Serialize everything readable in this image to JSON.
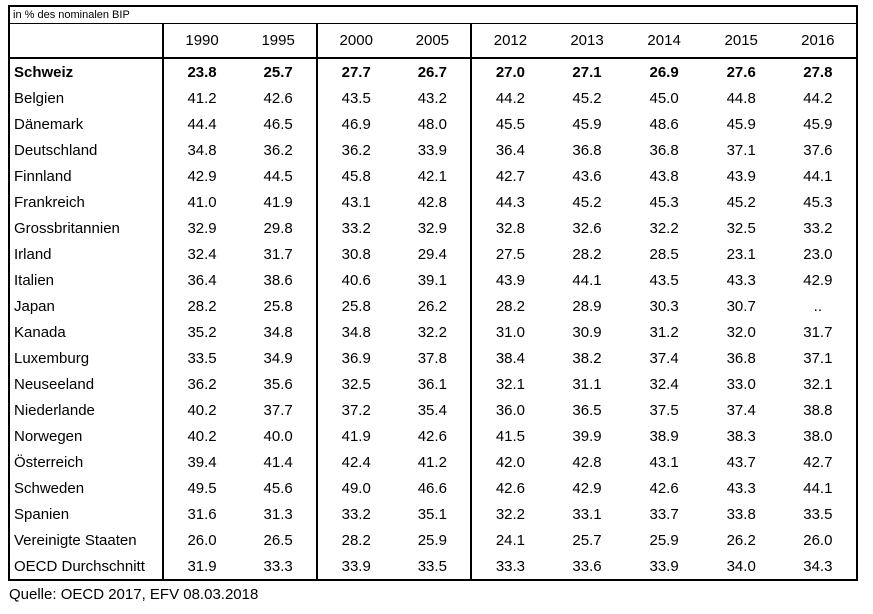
{
  "unit_note": "in % des nominalen BIP",
  "source_note": "Quelle: OECD 2017, EFV 08.03.2018",
  "colors": {
    "text": "#000000",
    "border": "#000000",
    "background": "#ffffff"
  },
  "chart_data": {
    "type": "table",
    "title": "",
    "unit": "in % des nominalen BIP",
    "columns": [
      "1990",
      "1995",
      "2000",
      "2005",
      "2012",
      "2013",
      "2014",
      "2015",
      "2016"
    ],
    "group_separator_after_year_indices": [
      1,
      3
    ],
    "rows": [
      {
        "label": "Schweiz",
        "bold": true,
        "values": [
          "23.8",
          "25.7",
          "27.7",
          "26.7",
          "27.0",
          "27.1",
          "26.9",
          "27.6",
          "27.8"
        ]
      },
      {
        "label": "Belgien",
        "bold": false,
        "values": [
          "41.2",
          "42.6",
          "43.5",
          "43.2",
          "44.2",
          "45.2",
          "45.0",
          "44.8",
          "44.2"
        ]
      },
      {
        "label": "Dänemark",
        "bold": false,
        "values": [
          "44.4",
          "46.5",
          "46.9",
          "48.0",
          "45.5",
          "45.9",
          "48.6",
          "45.9",
          "45.9"
        ]
      },
      {
        "label": "Deutschland",
        "bold": false,
        "values": [
          "34.8",
          "36.2",
          "36.2",
          "33.9",
          "36.4",
          "36.8",
          "36.8",
          "37.1",
          "37.6"
        ]
      },
      {
        "label": "Finnland",
        "bold": false,
        "values": [
          "42.9",
          "44.5",
          "45.8",
          "42.1",
          "42.7",
          "43.6",
          "43.8",
          "43.9",
          "44.1"
        ]
      },
      {
        "label": "Frankreich",
        "bold": false,
        "values": [
          "41.0",
          "41.9",
          "43.1",
          "42.8",
          "44.3",
          "45.2",
          "45.3",
          "45.2",
          "45.3"
        ]
      },
      {
        "label": "Grossbritannien",
        "bold": false,
        "values": [
          "32.9",
          "29.8",
          "33.2",
          "32.9",
          "32.8",
          "32.6",
          "32.2",
          "32.5",
          "33.2"
        ]
      },
      {
        "label": "Irland",
        "bold": false,
        "values": [
          "32.4",
          "31.7",
          "30.8",
          "29.4",
          "27.5",
          "28.2",
          "28.5",
          "23.1",
          "23.0"
        ]
      },
      {
        "label": "Italien",
        "bold": false,
        "values": [
          "36.4",
          "38.6",
          "40.6",
          "39.1",
          "43.9",
          "44.1",
          "43.5",
          "43.3",
          "42.9"
        ]
      },
      {
        "label": "Japan",
        "bold": false,
        "values": [
          "28.2",
          "25.8",
          "25.8",
          "26.2",
          "28.2",
          "28.9",
          "30.3",
          "30.7",
          ".."
        ]
      },
      {
        "label": "Kanada",
        "bold": false,
        "values": [
          "35.2",
          "34.8",
          "34.8",
          "32.2",
          "31.0",
          "30.9",
          "31.2",
          "32.0",
          "31.7"
        ]
      },
      {
        "label": "Luxemburg",
        "bold": false,
        "values": [
          "33.5",
          "34.9",
          "36.9",
          "37.8",
          "38.4",
          "38.2",
          "37.4",
          "36.8",
          "37.1"
        ]
      },
      {
        "label": "Neuseeland",
        "bold": false,
        "values": [
          "36.2",
          "35.6",
          "32.5",
          "36.1",
          "32.1",
          "31.1",
          "32.4",
          "33.0",
          "32.1"
        ]
      },
      {
        "label": "Niederlande",
        "bold": false,
        "values": [
          "40.2",
          "37.7",
          "37.2",
          "35.4",
          "36.0",
          "36.5",
          "37.5",
          "37.4",
          "38.8"
        ]
      },
      {
        "label": "Norwegen",
        "bold": false,
        "values": [
          "40.2",
          "40.0",
          "41.9",
          "42.6",
          "41.5",
          "39.9",
          "38.9",
          "38.3",
          "38.0"
        ]
      },
      {
        "label": "Österreich",
        "bold": false,
        "values": [
          "39.4",
          "41.4",
          "42.4",
          "41.2",
          "42.0",
          "42.8",
          "43.1",
          "43.7",
          "42.7"
        ]
      },
      {
        "label": "Schweden",
        "bold": false,
        "values": [
          "49.5",
          "45.6",
          "49.0",
          "46.6",
          "42.6",
          "42.9",
          "42.6",
          "43.3",
          "44.1"
        ]
      },
      {
        "label": "Spanien",
        "bold": false,
        "values": [
          "31.6",
          "31.3",
          "33.2",
          "35.1",
          "32.2",
          "33.1",
          "33.7",
          "33.8",
          "33.5"
        ]
      },
      {
        "label": "Vereinigte Staaten",
        "bold": false,
        "values": [
          "26.0",
          "26.5",
          "28.2",
          "25.9",
          "24.1",
          "25.7",
          "25.9",
          "26.2",
          "26.0"
        ]
      },
      {
        "label": "OECD Durchschnitt",
        "bold": false,
        "values": [
          "31.9",
          "33.3",
          "33.9",
          "33.5",
          "33.3",
          "33.6",
          "33.9",
          "34.0",
          "34.3"
        ]
      }
    ]
  }
}
